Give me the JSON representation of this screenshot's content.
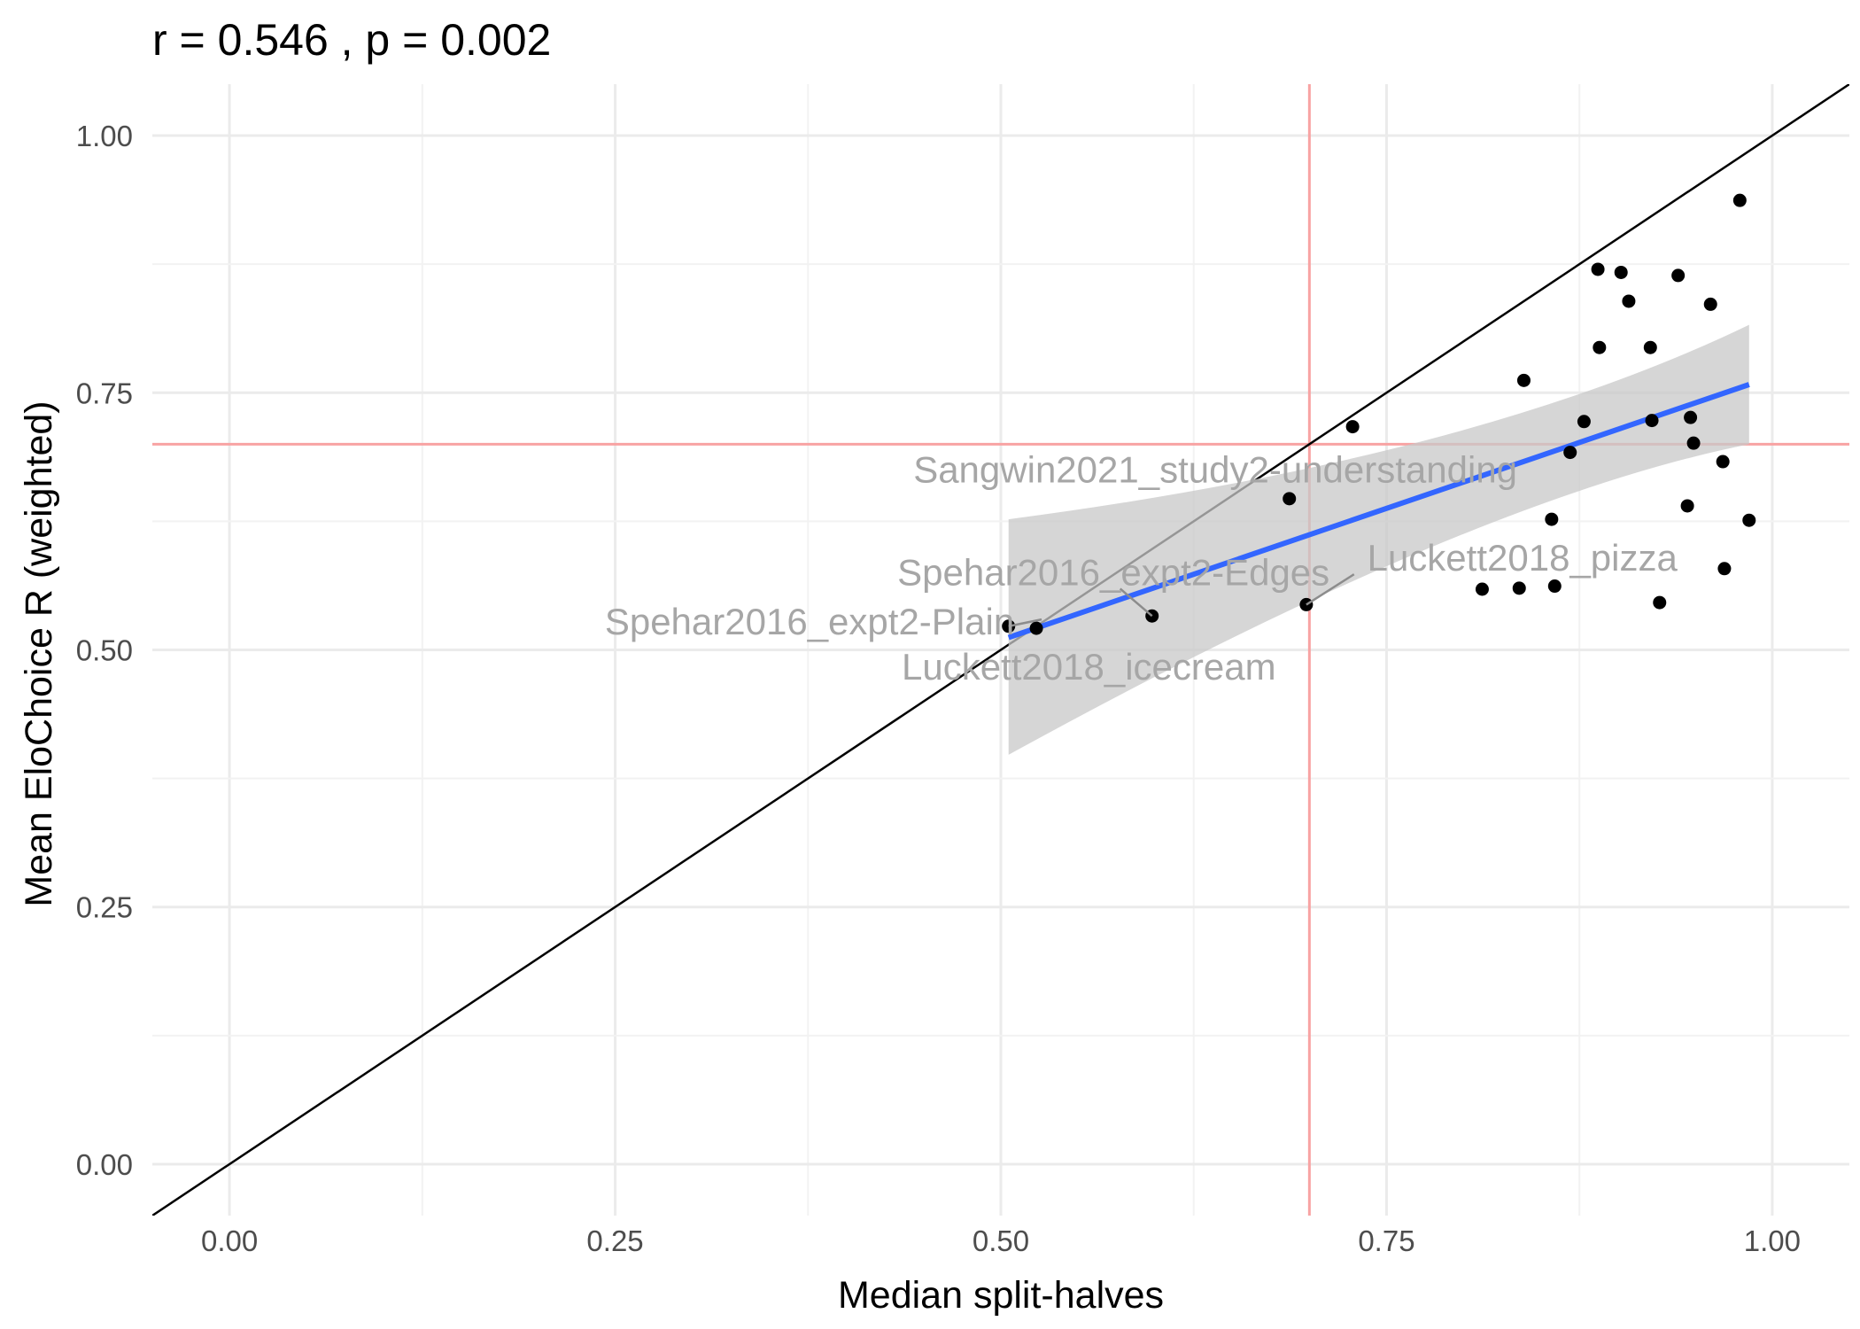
{
  "chart_data": {
    "type": "scatter",
    "title": "r =  0.546 , p =  0.002",
    "xlabel": "Median split-halves",
    "ylabel": "Mean EloChoice R (weighted)",
    "xlim": [
      -0.05,
      1.05
    ],
    "ylim": [
      -0.05,
      1.05
    ],
    "x_ticks": [
      0.0,
      0.25,
      0.5,
      0.75,
      1.0
    ],
    "x_tick_labels": [
      "0.00",
      "0.25",
      "0.50",
      "0.75",
      "1.00"
    ],
    "y_ticks": [
      0.0,
      0.25,
      0.5,
      0.75,
      1.0
    ],
    "y_tick_labels": [
      "0.00",
      "0.25",
      "0.50",
      "0.75",
      "1.00"
    ],
    "grid": true,
    "reference_lines": {
      "identity": {
        "slope": 1,
        "intercept": 0,
        "color": "#000000"
      },
      "vertical": {
        "x": 0.7,
        "color": "#f8a3a3"
      },
      "horizontal": {
        "y": 0.7,
        "color": "#f8a3a3"
      }
    },
    "fit": {
      "method": "linear",
      "x": [
        0.505,
        0.985
      ],
      "y": [
        0.512,
        0.758
      ],
      "band_lower": [
        0.398,
        0.7
      ],
      "band_upper": [
        0.627,
        0.816
      ],
      "line_color": "#3366ff",
      "band_color": "#c8c8c8"
    },
    "points": [
      {
        "x": 0.505,
        "y": 0.523
      },
      {
        "x": 0.523,
        "y": 0.521
      },
      {
        "x": 0.598,
        "y": 0.533
      },
      {
        "x": 0.687,
        "y": 0.647
      },
      {
        "x": 0.698,
        "y": 0.544
      },
      {
        "x": 0.728,
        "y": 0.717
      },
      {
        "x": 0.812,
        "y": 0.559
      },
      {
        "x": 0.836,
        "y": 0.56
      },
      {
        "x": 0.839,
        "y": 0.762
      },
      {
        "x": 0.859,
        "y": 0.562
      },
      {
        "x": 0.857,
        "y": 0.627
      },
      {
        "x": 0.869,
        "y": 0.692
      },
      {
        "x": 0.878,
        "y": 0.722
      },
      {
        "x": 0.887,
        "y": 0.87
      },
      {
        "x": 0.888,
        "y": 0.794
      },
      {
        "x": 0.902,
        "y": 0.867
      },
      {
        "x": 0.907,
        "y": 0.839
      },
      {
        "x": 0.921,
        "y": 0.794
      },
      {
        "x": 0.922,
        "y": 0.723
      },
      {
        "x": 0.927,
        "y": 0.546
      },
      {
        "x": 0.939,
        "y": 0.864
      },
      {
        "x": 0.945,
        "y": 0.64
      },
      {
        "x": 0.947,
        "y": 0.726
      },
      {
        "x": 0.949,
        "y": 0.701
      },
      {
        "x": 0.96,
        "y": 0.836
      },
      {
        "x": 0.968,
        "y": 0.683
      },
      {
        "x": 0.969,
        "y": 0.579
      },
      {
        "x": 0.979,
        "y": 0.937
      },
      {
        "x": 0.985,
        "y": 0.626
      }
    ],
    "annotations": [
      {
        "text": "Sangwin2021_study2-understanding",
        "text_x": 0.639,
        "text_y": 0.675,
        "anchor": "middle",
        "point_x": 0.687,
        "point_y": 0.647,
        "has_segment": false
      },
      {
        "text": "Spehar2016_expt2-Edges",
        "text_x": 0.573,
        "text_y": 0.575,
        "anchor": "middle",
        "point_x": 0.598,
        "point_y": 0.533,
        "has_segment": true
      },
      {
        "text": "Luckett2018_pizza",
        "text_x": 0.838,
        "text_y": 0.589,
        "anchor": "middle",
        "point_x": 0.698,
        "point_y": 0.544,
        "has_segment": true
      },
      {
        "text": "Spehar2016_expt2-Plain",
        "text_x": 0.376,
        "text_y": 0.527,
        "anchor": "middle",
        "point_x": 0.505,
        "point_y": 0.523,
        "has_segment": true
      },
      {
        "text": "Luckett2018_icecream",
        "text_x": 0.557,
        "text_y": 0.483,
        "anchor": "middle",
        "point_x": 0.523,
        "point_y": 0.521,
        "has_segment": false
      }
    ]
  }
}
